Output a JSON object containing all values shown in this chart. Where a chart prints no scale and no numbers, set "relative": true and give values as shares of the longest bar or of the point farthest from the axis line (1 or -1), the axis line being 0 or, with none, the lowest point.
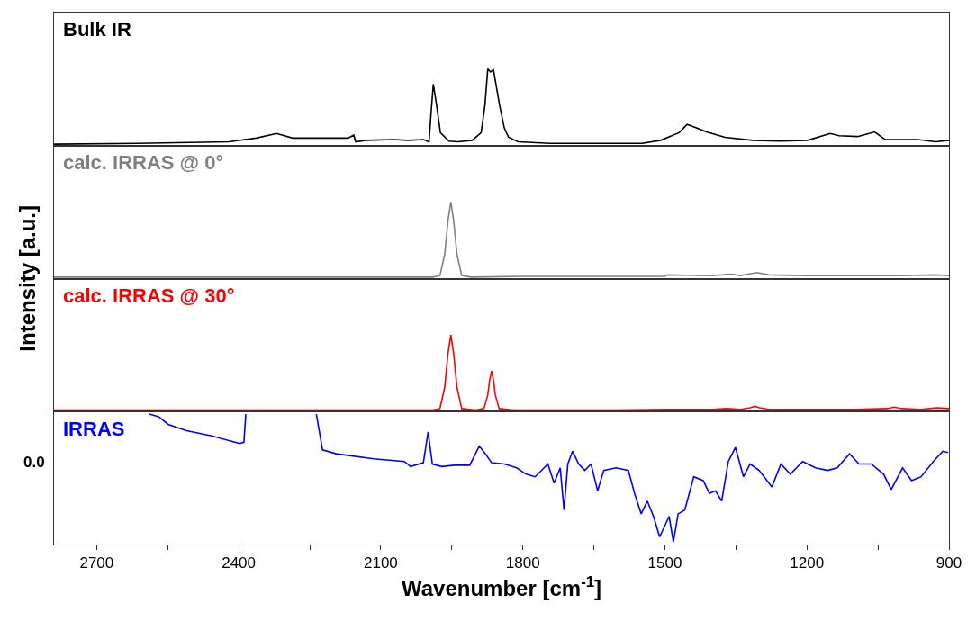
{
  "chart_data": [
    {
      "type": "line",
      "relative": true,
      "ylabel": "Intensity [a.u.]",
      "xlim": [
        2790,
        900
      ],
      "series": [
        {
          "name": "Bulk IR",
          "color": "#000000",
          "x": [
            2790,
            2615,
            2421,
            2363,
            2320,
            2286,
            2169,
            2157,
            2153,
            2131,
            2072,
            2043,
            2010,
            1998,
            1994,
            1989,
            1982,
            1974,
            1956,
            1937,
            1907,
            1888,
            1880,
            1874,
            1868,
            1862,
            1849,
            1839,
            1830,
            1810,
            1742,
            1645,
            1548,
            1509,
            1470,
            1453,
            1432,
            1412,
            1373,
            1315,
            1257,
            1199,
            1151,
            1132,
            1093,
            1057,
            1035,
            1005,
            966,
            928,
            900
          ],
          "values": [
            0.01,
            0.02,
            0.04,
            0.09,
            0.15,
            0.09,
            0.09,
            0.13,
            0.04,
            0.06,
            0.07,
            0.06,
            0.07,
            0.04,
            0.4,
            0.8,
            0.52,
            0.16,
            0.05,
            0.04,
            0.06,
            0.16,
            0.52,
            1.0,
            0.96,
            0.99,
            0.52,
            0.22,
            0.1,
            0.04,
            0.02,
            0.02,
            0.02,
            0.06,
            0.16,
            0.27,
            0.22,
            0.17,
            0.1,
            0.06,
            0.05,
            0.06,
            0.15,
            0.12,
            0.11,
            0.17,
            0.07,
            0.07,
            0.07,
            0.04,
            0.06
          ]
        }
      ]
    },
    {
      "type": "line",
      "relative": true,
      "xlim": [
        2790,
        900
      ],
      "series": [
        {
          "name": "calc. IRRAS @ 0°",
          "color": "#808080",
          "x": [
            2790,
            2100,
            1990,
            1975,
            1965,
            1958,
            1952,
            1946,
            1939,
            1929,
            1910,
            1800,
            1600,
            1500,
            1495,
            1400,
            1359,
            1340,
            1306,
            1280,
            1200,
            1100,
            1000,
            930,
            900
          ],
          "values": [
            0,
            0,
            0,
            0.02,
            0.3,
            0.75,
            1.0,
            0.75,
            0.3,
            0.02,
            0,
            0.01,
            0.01,
            0.01,
            0.03,
            0.02,
            0.04,
            0.02,
            0.06,
            0.03,
            0.02,
            0.02,
            0.02,
            0.03,
            0.02
          ]
        }
      ]
    },
    {
      "type": "line",
      "relative": true,
      "xlim": [
        2790,
        900
      ],
      "series": [
        {
          "name": "calc. IRRAS @ 30°",
          "color": "#ff0000",
          "x": [
            2790,
            1990,
            1975,
            1965,
            1958,
            1952,
            1946,
            1939,
            1929,
            1900,
            1882,
            1874,
            1870,
            1866,
            1862,
            1858,
            1850,
            1820,
            1600,
            1500,
            1400,
            1370,
            1340,
            1320,
            1310,
            1300,
            1280,
            1200,
            1100,
            1030,
            1016,
            1000,
            960,
            925,
            900
          ],
          "values": [
            0,
            0,
            0.02,
            0.3,
            0.75,
            1.0,
            0.75,
            0.3,
            0.02,
            0,
            0.02,
            0.2,
            0.4,
            0.52,
            0.4,
            0.2,
            0.02,
            0,
            0,
            0.01,
            0.01,
            0.02,
            0.01,
            0.03,
            0.05,
            0.03,
            0.01,
            0.01,
            0.01,
            0.02,
            0.04,
            0.02,
            0.01,
            0.03,
            0.02
          ]
        }
      ]
    },
    {
      "type": "line",
      "relative": true,
      "xlabel": "Wavenumber [cm$^{-1}$]",
      "xlim": [
        2790,
        900
      ],
      "xticks": [
        2700,
        {
          "value": 2550,
          "label": null
        },
        2400,
        {
          "value": 2250,
          "label": null
        },
        2100,
        {
          "value": 1950,
          "label": null
        },
        1800,
        {
          "value": 1650,
          "label": null
        },
        1500,
        {
          "value": 1350,
          "label": null
        },
        1200,
        {
          "value": 1050,
          "label": null
        },
        900
      ],
      "annotations": [
        "0.0"
      ],
      "series": [
        {
          "name": "IRRAS",
          "color": "#0000ff",
          "x": [
            2589,
            2569,
            2549,
            2510,
            2457,
            2398,
            2389,
            2385,
            2300,
            2236,
            2223,
            2194,
            2115,
            2050,
            2037,
            2010,
            2000,
            1991,
            1971,
            1945,
            1912,
            1892,
            1879,
            1866,
            1839,
            1813,
            1793,
            1774,
            1747,
            1734,
            1721,
            1713,
            1705,
            1695,
            1682,
            1669,
            1656,
            1642,
            1629,
            1603,
            1577,
            1564,
            1550,
            1537,
            1524,
            1511,
            1491,
            1482,
            1472,
            1458,
            1439,
            1419,
            1406,
            1393,
            1380,
            1366,
            1351,
            1334,
            1320,
            1301,
            1274,
            1255,
            1235,
            1209,
            1182,
            1156,
            1136,
            1110,
            1090,
            1064,
            1038,
            1022,
            998,
            979,
            959,
            933,
            913,
            902
          ],
          "values": [
            1.0,
            0.98,
            0.92,
            0.87,
            0.83,
            0.77,
            0.78,
            1.0,
            null,
            1.0,
            0.72,
            0.69,
            0.65,
            0.63,
            0.59,
            0.62,
            0.86,
            0.61,
            0.59,
            0.6,
            0.6,
            0.75,
            0.69,
            0.62,
            0.61,
            0.58,
            0.53,
            0.51,
            0.61,
            0.46,
            0.58,
            0.25,
            0.61,
            0.71,
            0.61,
            0.56,
            0.61,
            0.4,
            0.56,
            0.58,
            0.56,
            0.38,
            0.22,
            0.32,
            0.2,
            0.04,
            0.2,
            0,
            0.22,
            0.25,
            0.51,
            0.48,
            0.38,
            0.4,
            0.32,
            0.63,
            0.74,
            0.51,
            0.61,
            0.56,
            0.43,
            0.61,
            0.53,
            0.63,
            0.58,
            0.56,
            0.58,
            0.69,
            0.61,
            0.61,
            0.53,
            0.41,
            0.58,
            0.48,
            0.51,
            0.63,
            0.71,
            0.7
          ]
        }
      ]
    }
  ]
}
